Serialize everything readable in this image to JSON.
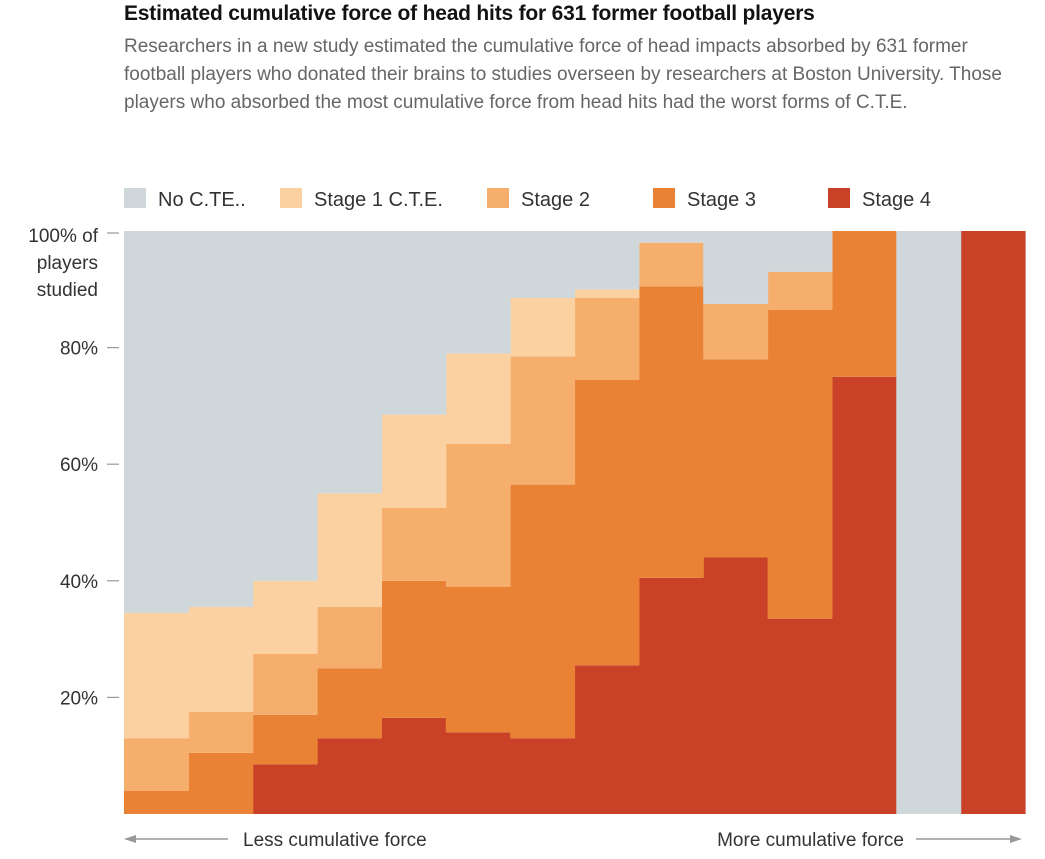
{
  "chart_data": {
    "type": "area",
    "subtype": "stacked-100-percent-step",
    "title": "Estimated cumulative force of head hits for 631 former football players",
    "subtitle": "Researchers in a new study estimated the cumulative force of head impacts absorbed by 631 former football players who donated their brains to studies overseen by researchers at Boston University. Those players who absorbed the most cumulative force from head hits had the worst forms of C.T.E.",
    "xlabel_left": "Less cumulative force",
    "xlabel_right": "More cumulative force",
    "ylabel_lines": [
      "100% of",
      "players",
      "studied"
    ],
    "yticks": [
      {
        "value": 80,
        "label": "80%"
      },
      {
        "value": 60,
        "label": "60%"
      },
      {
        "value": 40,
        "label": "40%"
      },
      {
        "value": 20,
        "label": "20%"
      }
    ],
    "ylim": [
      0,
      100
    ],
    "bins": 14,
    "series": [
      {
        "name": "Stage 4",
        "legend": "Stage 4",
        "color": "#c94127",
        "values": [
          0,
          0,
          8.5,
          13,
          16.5,
          14,
          13,
          25.5,
          40.5,
          44,
          33.5,
          75,
          0,
          100
        ]
      },
      {
        "name": "Stage 3",
        "legend": "Stage 3",
        "color": "#e98234",
        "values": [
          4,
          10.5,
          8.5,
          12,
          23.5,
          25,
          43.5,
          49,
          50,
          34,
          53,
          25,
          0,
          0
        ]
      },
      {
        "name": "Stage 2",
        "legend": "Stage 2",
        "color": "#f6ae6d",
        "values": [
          9,
          7,
          10.5,
          10.5,
          12.5,
          24.5,
          22,
          14,
          7.5,
          9.5,
          6.5,
          0,
          0,
          0
        ]
      },
      {
        "name": "Stage 1",
        "legend": "Stage 1 C.T.E.",
        "color": "#fbd1a1",
        "values": [
          21.5,
          18,
          12.5,
          19.5,
          16,
          15.5,
          10,
          1.5,
          0,
          0,
          0,
          0,
          0,
          0
        ]
      },
      {
        "name": "No C.T.E.",
        "legend": "No C.TE..",
        "color": "#cfd7da",
        "values": [
          65.5,
          64.5,
          60,
          45,
          31.5,
          21,
          11.5,
          10,
          2,
          12.5,
          7,
          0,
          100,
          0
        ]
      }
    ]
  }
}
